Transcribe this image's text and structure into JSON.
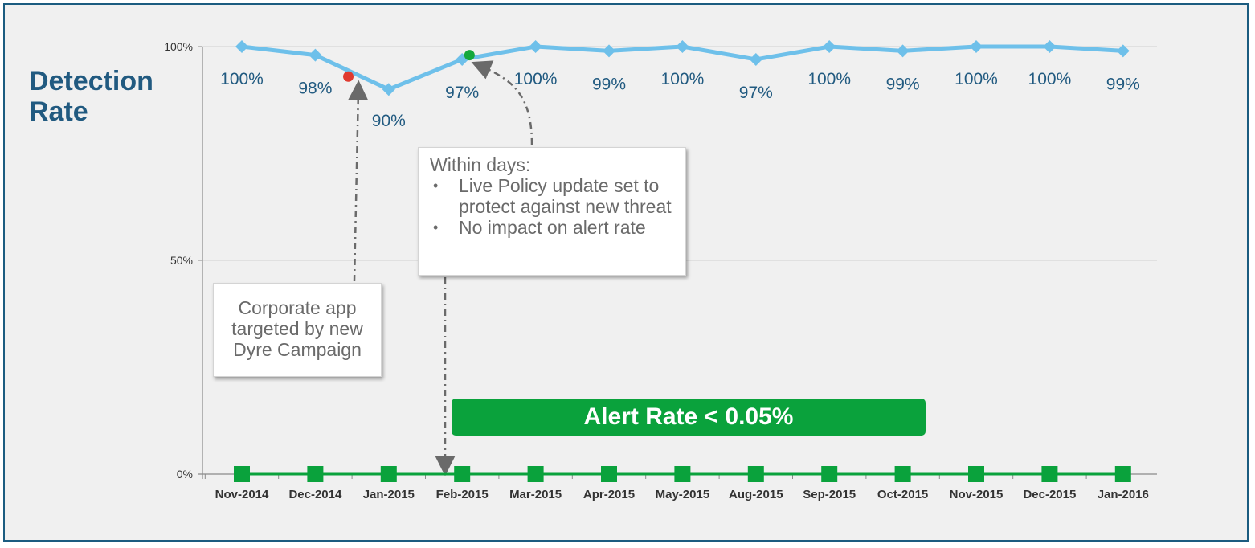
{
  "y_axis_title": "Detection Rate",
  "chart_data": {
    "type": "line",
    "categories": [
      "Nov-2014",
      "Dec-2014",
      "Jan-2015",
      "Feb-2015",
      "Mar-2015",
      "Apr-2015",
      "May-2015",
      "Aug-2015",
      "Sep-2015",
      "Oct-2015",
      "Nov-2015",
      "Dec-2015",
      "Jan-2016"
    ],
    "yticks": [
      "0%",
      "50%",
      "100%"
    ],
    "ylim": [
      0,
      100
    ],
    "grid": true,
    "series": [
      {
        "key": "detection",
        "values": [
          100,
          98,
          90,
          97,
          100,
          99,
          100,
          97,
          100,
          99,
          100,
          100,
          99
        ],
        "labels": [
          "100%",
          "98%",
          "90%",
          "97%",
          "100%",
          "99%",
          "100%",
          "97%",
          "100%",
          "99%",
          "100%",
          "100%",
          "99%"
        ],
        "color": "#6ec0ea",
        "marker": "diamond"
      },
      {
        "key": "alert",
        "values": [
          0,
          0,
          0,
          0,
          0,
          0,
          0,
          0,
          0,
          0,
          0,
          0,
          0
        ],
        "color": "#0aa23c",
        "marker": "square"
      }
    ],
    "event_markers": [
      {
        "key": "attack",
        "x_between": [
          "Dec-2014",
          "Jan-2015"
        ],
        "x_position": 0.45,
        "value": 93,
        "color": "#e03a2f"
      },
      {
        "key": "fix",
        "x_between": [
          "Feb-2015",
          "Mar-2015"
        ],
        "x_position": 0.1,
        "value": 98,
        "color": "#14a83c"
      }
    ]
  },
  "callouts": {
    "dyre": "Corporate app targeted by new Dyre Campaign",
    "policy": {
      "heading": "Within days:",
      "items": [
        "Live Policy update set to protect against new threat",
        "No impact on alert rate"
      ],
      "bullet": "•"
    }
  },
  "alert_banner": "Alert Rate < 0.05%",
  "colors": {
    "frame_border": "#1b5c80",
    "background": "#f0f0f0",
    "label_text": "#215a80",
    "arrow": "#6a6a6a"
  }
}
